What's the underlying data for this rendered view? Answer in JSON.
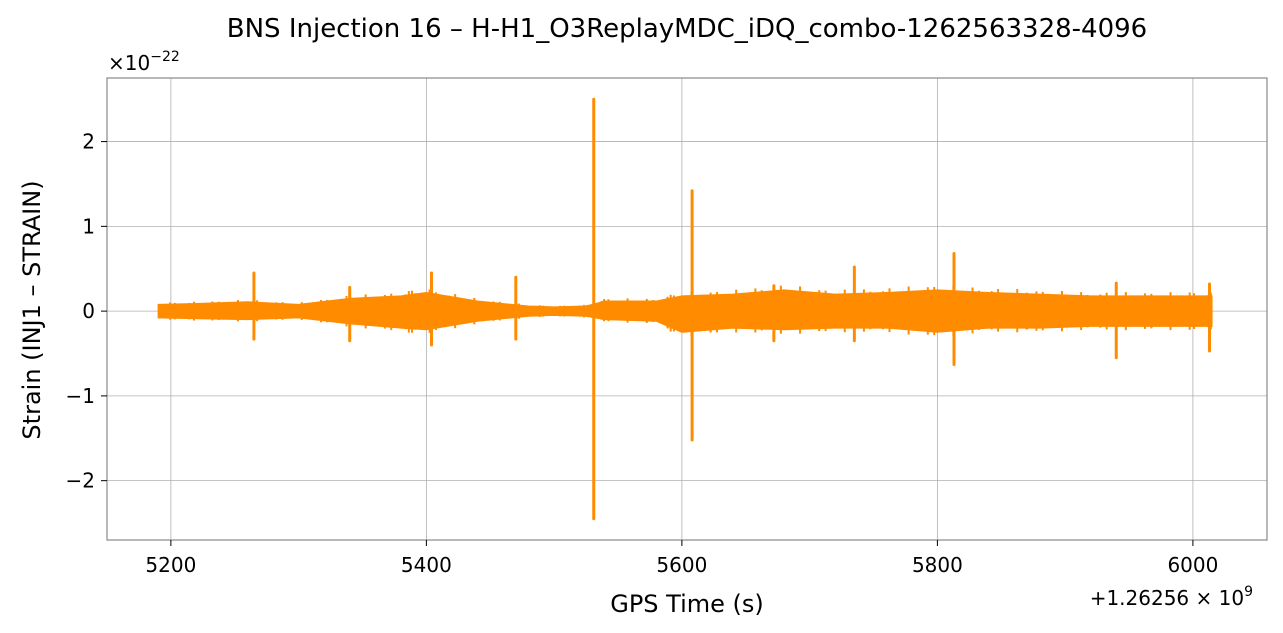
{
  "chart_data": {
    "type": "line",
    "title": "BNS Injection 16 – H-H1_O3ReplayMDC_iDQ_combo-1262563328-4096",
    "xlabel": "GPS Time (s)",
    "ylabel": "Strain (INJ1 – STRAIN)",
    "x_offset_label": "+1.26256 × 10",
    "x_offset_exponent": "9",
    "y_scale_label": "×10",
    "y_scale_exponent": "−22",
    "xlim": [
      5150,
      6058
    ],
    "ylim": [
      -2.7,
      2.75
    ],
    "x_ticks": [
      {
        "value": 5200,
        "label": "5200"
      },
      {
        "value": 5400,
        "label": "5400"
      },
      {
        "value": 5600,
        "label": "5600"
      },
      {
        "value": 5800,
        "label": "5800"
      },
      {
        "value": 6000,
        "label": "6000"
      }
    ],
    "y_ticks": [
      {
        "value": 2,
        "label": "2"
      },
      {
        "value": 1,
        "label": "1"
      },
      {
        "value": 0,
        "label": "0"
      },
      {
        "value": -1,
        "label": "−1"
      },
      {
        "value": -2,
        "label": "−2"
      }
    ],
    "grid": true,
    "series": [
      {
        "color": "#ff8c00",
        "envelope_x": [
          5190,
          5220,
          5260,
          5300,
          5340,
          5380,
          5400,
          5440,
          5480,
          5500,
          5525,
          5540,
          5580,
          5600,
          5640,
          5680,
          5720,
          5760,
          5800,
          5840,
          5880,
          5920,
          5960,
          6000,
          6015
        ],
        "envelope_upper": [
          0.08,
          0.09,
          0.11,
          0.08,
          0.15,
          0.18,
          0.22,
          0.12,
          0.06,
          0.05,
          0.06,
          0.12,
          0.12,
          0.18,
          0.2,
          0.25,
          0.2,
          0.22,
          0.25,
          0.22,
          0.2,
          0.18,
          0.18,
          0.18,
          0.18
        ],
        "envelope_lower": [
          -0.08,
          -0.09,
          -0.1,
          -0.08,
          -0.15,
          -0.2,
          -0.22,
          -0.12,
          -0.06,
          -0.05,
          -0.06,
          -0.1,
          -0.12,
          -0.25,
          -0.2,
          -0.22,
          -0.2,
          -0.2,
          -0.25,
          -0.2,
          -0.2,
          -0.18,
          -0.18,
          -0.18,
          -0.18
        ],
        "spikes": [
          {
            "x": 5265,
            "max": 0.45,
            "min": -0.33
          },
          {
            "x": 5340,
            "max": 0.28,
            "min": -0.35
          },
          {
            "x": 5404,
            "max": 0.45,
            "min": -0.4
          },
          {
            "x": 5470,
            "max": 0.4,
            "min": -0.33
          },
          {
            "x": 5531,
            "max": 2.5,
            "min": -2.45
          },
          {
            "x": 5608,
            "max": 1.42,
            "min": -1.52
          },
          {
            "x": 5672,
            "max": 0.3,
            "min": -0.35
          },
          {
            "x": 5735,
            "max": 0.52,
            "min": -0.35
          },
          {
            "x": 5813,
            "max": 0.68,
            "min": -0.63
          },
          {
            "x": 5870,
            "max": 0.2,
            "min": -0.2
          },
          {
            "x": 5940,
            "max": 0.33,
            "min": -0.55
          },
          {
            "x": 6013,
            "max": 0.32,
            "min": -0.47
          }
        ]
      }
    ]
  }
}
